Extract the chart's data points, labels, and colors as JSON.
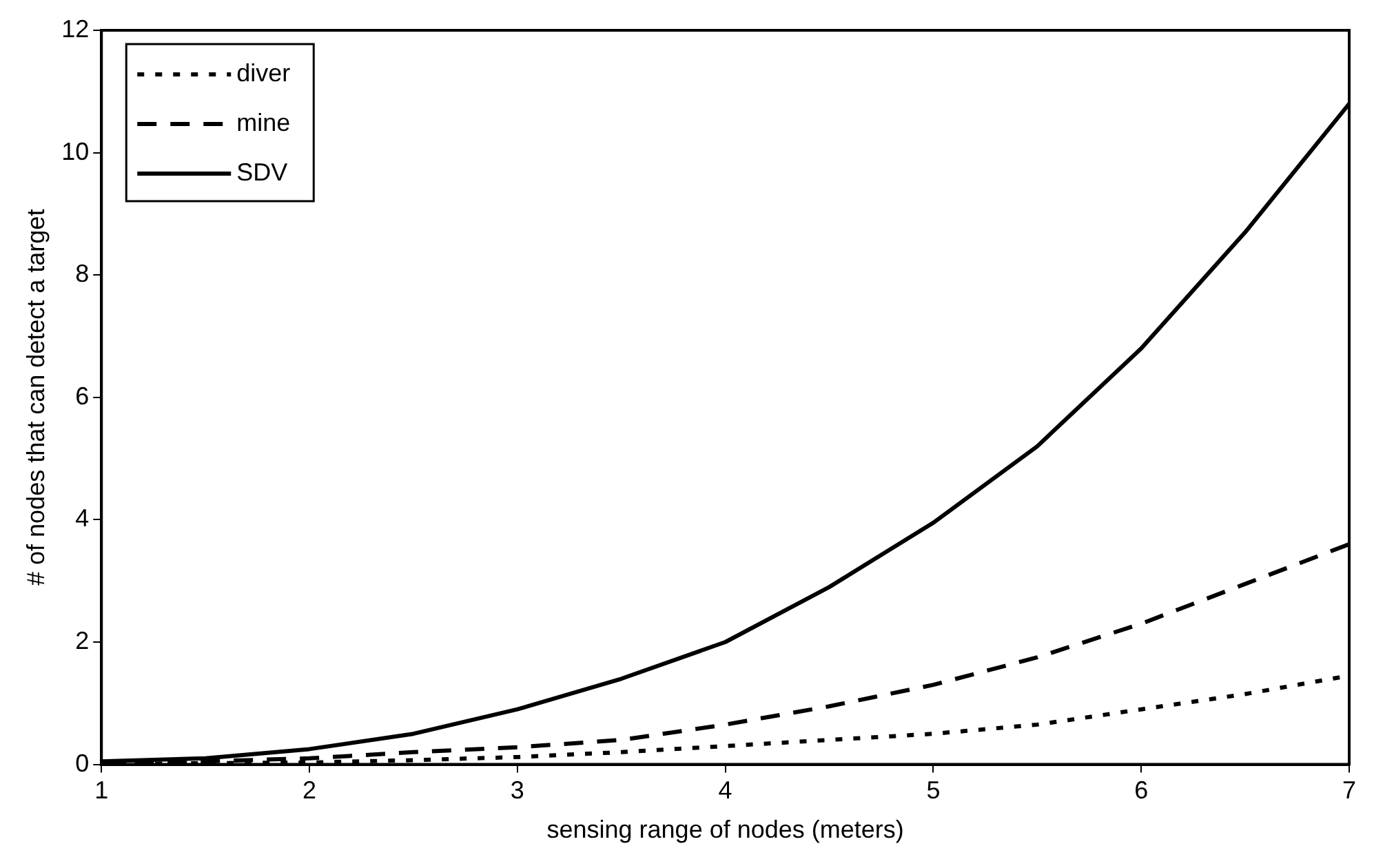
{
  "chart_data": {
    "type": "line",
    "xlabel": "sensing range of nodes (meters)",
    "ylabel": "# of nodes that can detect a target",
    "x": [
      1,
      1.5,
      2,
      2.5,
      3,
      3.5,
      4,
      4.5,
      5,
      5.5,
      6,
      6.5,
      7
    ],
    "series": [
      {
        "name": "diver",
        "color": "#000000",
        "line_style": "dotted",
        "values": [
          0,
          0.02,
          0.03,
          0.07,
          0.12,
          0.2,
          0.3,
          0.4,
          0.5,
          0.65,
          0.9,
          1.15,
          1.45
        ]
      },
      {
        "name": "mine",
        "color": "#000000",
        "line_style": "dashed",
        "values": [
          0.02,
          0.05,
          0.1,
          0.2,
          0.28,
          0.4,
          0.65,
          0.95,
          1.3,
          1.75,
          2.3,
          2.95,
          3.6
        ]
      },
      {
        "name": "SDV",
        "color": "#000000",
        "line_style": "solid",
        "values": [
          0.05,
          0.1,
          0.25,
          0.5,
          0.9,
          1.4,
          2.0,
          2.9,
          3.95,
          5.2,
          6.8,
          8.7,
          10.8
        ]
      }
    ],
    "xlim": [
      1,
      7
    ],
    "xticks": [
      1,
      2,
      3,
      4,
      5,
      6,
      7
    ],
    "ylim": [
      0,
      12
    ],
    "yticks": [
      0,
      2,
      4,
      6,
      8,
      10,
      12
    ],
    "grid": false,
    "legend": "top left",
    "marker": "none"
  }
}
